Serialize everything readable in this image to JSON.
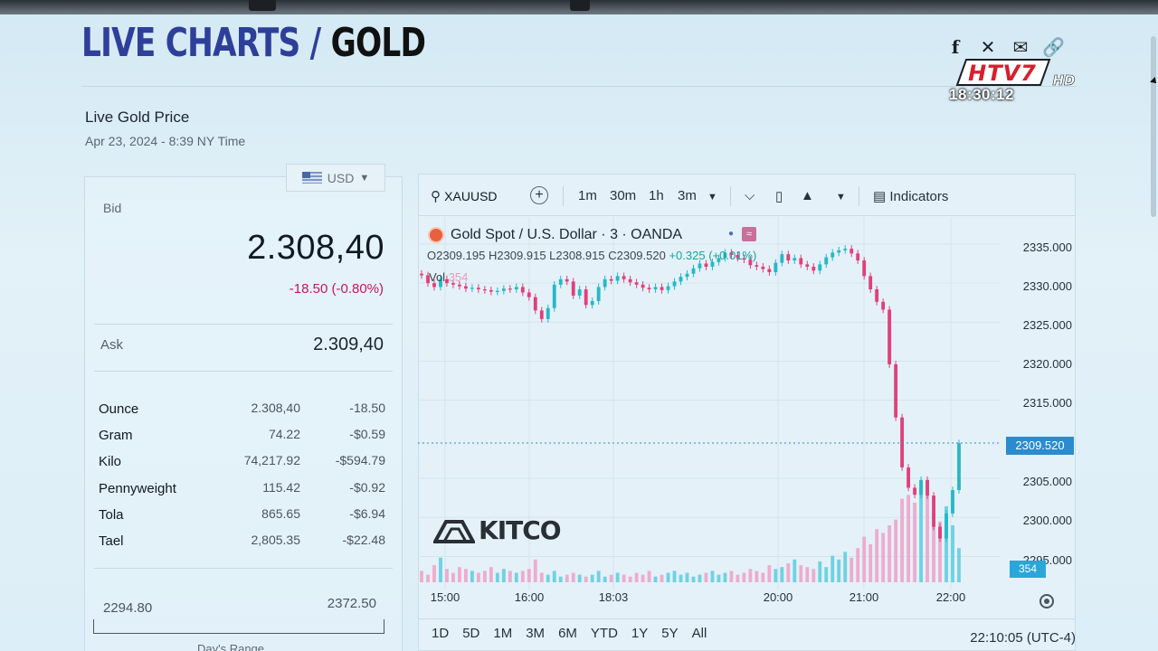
{
  "header": {
    "title_part1": "LIVE CHARTS",
    "title_sep": "/",
    "title_part2": "GOLD"
  },
  "subtitle": {
    "title": "Live Gold Price",
    "date": "Apr 23, 2024 - 8:39 NY Time"
  },
  "currency": {
    "selected": "USD"
  },
  "bid": {
    "label": "Bid",
    "value": "2.308,40",
    "change": "-18.50 (-0.80%)"
  },
  "ask": {
    "label": "Ask",
    "value": "2.309,40"
  },
  "units": [
    {
      "name": "Ounce",
      "value": "2.308,40",
      "change": "-18.50"
    },
    {
      "name": "Gram",
      "value": "74.22",
      "change": "-$0.59"
    },
    {
      "name": "Kilo",
      "value": "74,217.92",
      "change": "-$594.79"
    },
    {
      "name": "Pennyweight",
      "value": "115.42",
      "change": "-$0.92"
    },
    {
      "name": "Tola",
      "value": "865.65",
      "change": "-$6.94"
    },
    {
      "name": "Tael",
      "value": "2,805.35",
      "change": "-$22.48"
    }
  ],
  "day_range": {
    "low": "2294.80",
    "high": "2372.50",
    "label": "Day's Range"
  },
  "toolbar": {
    "symbol": "XAUUSD",
    "intervals": [
      "1m",
      "30m",
      "1h",
      "3m"
    ],
    "indicators_label": "Indicators"
  },
  "legend": {
    "title": "Gold Spot / U.S. Dollar · 3 · OANDA",
    "ohlc": "O2309.195 H2309.915 L2308.915 C2309.520",
    "change": "+0.325 (+0.01%)",
    "vol_label": "Vol",
    "vol_value": "354"
  },
  "price_scale": {
    "labels": [
      "2335.000",
      "2330.000",
      "2325.000",
      "2320.000",
      "2315.000",
      "2305.000",
      "2300.000",
      "2295.000"
    ],
    "last_price": "2309.520",
    "volume_tag": "354"
  },
  "time_axis": {
    "labels": [
      "15:00",
      "16:00",
      "18:03",
      "20:00",
      "21:00",
      "22:00"
    ]
  },
  "ranges": [
    "1D",
    "5D",
    "1M",
    "3M",
    "6M",
    "YTD",
    "1Y",
    "5Y",
    "All"
  ],
  "clock": "22:10:05 (UTC-4)",
  "branding": {
    "kitco": "KITCO",
    "channel": "HTV7",
    "channel_hd": "HD",
    "broadcast_time": "18:30:12"
  },
  "colors": {
    "up": "#26b8c7",
    "down": "#e0407a",
    "title_blue": "#2e3f9a",
    "vol_up": "#5ccbe0",
    "vol_down": "#f0a0c8"
  },
  "chart_data": {
    "type": "candlestick",
    "symbol": "XAUUSD",
    "title": "Gold Spot / U.S. Dollar · 3 · OANDA",
    "x_ticks": [
      "15:00",
      "16:00",
      "18:03",
      "20:00",
      "21:00",
      "22:00"
    ],
    "ylim": [
      2291,
      2338
    ],
    "y_ticks": [
      2335,
      2330,
      2325,
      2320,
      2315,
      2305,
      2300,
      2295
    ],
    "last_close": 2309.52,
    "close_path": [
      2331,
      2330,
      2329.5,
      2330.5,
      2330,
      2329.8,
      2329.6,
      2329.3,
      2329.4,
      2329.2,
      2329.1,
      2328.9,
      2329,
      2329.3,
      2329.2,
      2329.5,
      2328.8,
      2328.2,
      2326.5,
      2325.4,
      2326.8,
      2329.8,
      2330.5,
      2330.2,
      2328.4,
      2329.2,
      2327.2,
      2327.7,
      2329.5,
      2330.5,
      2330.3,
      2330.9,
      2330.5,
      2330.1,
      2329.8,
      2329.4,
      2329.2,
      2329.5,
      2329.1,
      2329.6,
      2330.2,
      2330.8,
      2331.2,
      2331.9,
      2332.5,
      2332.1,
      2332.7,
      2333.2,
      2333.9,
      2333.6,
      2333.2,
      2333,
      2332.3,
      2332.1,
      2331.8,
      2331.4,
      2332.6,
      2333.7,
      2332.9,
      2333.2,
      2332.4,
      2332.1,
      2331.6,
      2332.4,
      2333.3,
      2333.9,
      2334.2,
      2334.4,
      2333.8,
      2332.9,
      2330.9,
      2329.2,
      2327.6,
      2326.6,
      2319.6,
      2312.8,
      2306.4,
      2303.8,
      2302.9,
      2304.8,
      2302.8,
      2298.8,
      2297.3,
      2300.5,
      2303.5,
      2309.5
    ],
    "volume_path": [
      6,
      4,
      9,
      13,
      7,
      5,
      8,
      7,
      6,
      5,
      6,
      8,
      5,
      7,
      6,
      5,
      6,
      7,
      12,
      5,
      4,
      6,
      3,
      4,
      5,
      4,
      3,
      4,
      6,
      3,
      4,
      5,
      4,
      3,
      5,
      4,
      6,
      3,
      4,
      5,
      6,
      4,
      5,
      3,
      4,
      5,
      6,
      4,
      5,
      6,
      4,
      5,
      7,
      6,
      5,
      9,
      7,
      8,
      10,
      12,
      9,
      8,
      7,
      11,
      8,
      14,
      12,
      16,
      13,
      18,
      24,
      20,
      28,
      26,
      30,
      33,
      44,
      46,
      42,
      50,
      46,
      38,
      32,
      40,
      30,
      18
    ]
  }
}
